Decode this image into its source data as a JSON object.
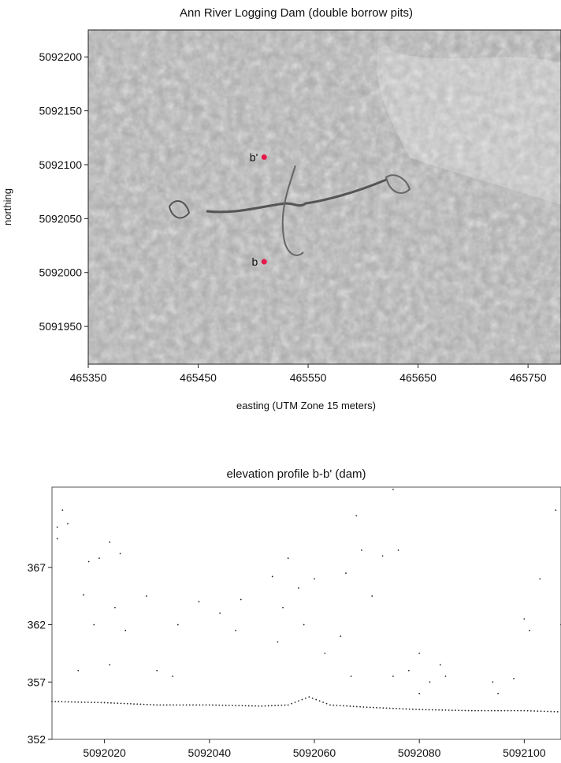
{
  "chart_data": [
    {
      "type": "map",
      "title": "Ann River Logging Dam (double borrow pits)",
      "xlabel": "easting (UTM Zone 15 meters)",
      "ylabel": "northing",
      "xlim": [
        465350,
        465780
      ],
      "ylim": [
        5091915,
        5092225
      ],
      "xticks": [
        "465350",
        "465450",
        "465550",
        "465650",
        "465750"
      ],
      "yticks": [
        "5092200",
        "5092150",
        "5092100",
        "5092050",
        "5092000",
        "5091950"
      ],
      "points": [
        {
          "label": "b'",
          "x": 465510,
          "y": 5092107
        },
        {
          "label": "b",
          "x": 465510,
          "y": 5092010
        }
      ],
      "marker_color": "#e6194b"
    },
    {
      "type": "scatter",
      "title": "elevation profile b-b' (dam)",
      "xlabel": "",
      "ylabel": "",
      "xlim": [
        5092010,
        5092107
      ],
      "ylim": [
        352,
        374
      ],
      "xticks": [
        "5092020",
        "5092040",
        "5092060",
        "5092080",
        "5092100"
      ],
      "yticks": [
        "367",
        "362",
        "357",
        "352"
      ],
      "ground_profile": [
        {
          "x": 5092010,
          "y": 355.3
        },
        {
          "x": 5092020,
          "y": 355.2
        },
        {
          "x": 5092030,
          "y": 355.0
        },
        {
          "x": 5092040,
          "y": 355.0
        },
        {
          "x": 5092050,
          "y": 354.9
        },
        {
          "x": 5092055,
          "y": 355.0
        },
        {
          "x": 5092059,
          "y": 355.7
        },
        {
          "x": 5092063,
          "y": 355.0
        },
        {
          "x": 5092070,
          "y": 354.8
        },
        {
          "x": 5092080,
          "y": 354.6
        },
        {
          "x": 5092090,
          "y": 354.5
        },
        {
          "x": 5092100,
          "y": 354.5
        },
        {
          "x": 5092107,
          "y": 354.4
        }
      ],
      "canopy_points": [
        {
          "x": 5092011,
          "y": 370.5
        },
        {
          "x": 5092012,
          "y": 372.0
        },
        {
          "x": 5092013,
          "y": 370.8
        },
        {
          "x": 5092011,
          "y": 369.5
        },
        {
          "x": 5092017,
          "y": 367.5
        },
        {
          "x": 5092019,
          "y": 367.8
        },
        {
          "x": 5092021,
          "y": 369.2
        },
        {
          "x": 5092023,
          "y": 368.2
        },
        {
          "x": 5092016,
          "y": 364.6
        },
        {
          "x": 5092018,
          "y": 362.0
        },
        {
          "x": 5092022,
          "y": 363.5
        },
        {
          "x": 5092024,
          "y": 361.5
        },
        {
          "x": 5092015,
          "y": 358.0
        },
        {
          "x": 5092021,
          "y": 358.5
        },
        {
          "x": 5092028,
          "y": 364.5
        },
        {
          "x": 5092034,
          "y": 362.0
        },
        {
          "x": 5092038,
          "y": 364.0
        },
        {
          "x": 5092042,
          "y": 363.0
        },
        {
          "x": 5092045,
          "y": 361.5
        },
        {
          "x": 5092046,
          "y": 364.2
        },
        {
          "x": 5092030,
          "y": 358.0
        },
        {
          "x": 5092033,
          "y": 357.5
        },
        {
          "x": 5092052,
          "y": 366.2
        },
        {
          "x": 5092054,
          "y": 363.5
        },
        {
          "x": 5092055,
          "y": 367.8
        },
        {
          "x": 5092057,
          "y": 365.2
        },
        {
          "x": 5092060,
          "y": 366.0
        },
        {
          "x": 5092053,
          "y": 360.5
        },
        {
          "x": 5092058,
          "y": 362.0
        },
        {
          "x": 5092062,
          "y": 359.5
        },
        {
          "x": 5092066,
          "y": 366.5
        },
        {
          "x": 5092068,
          "y": 371.5
        },
        {
          "x": 5092069,
          "y": 368.5
        },
        {
          "x": 5092071,
          "y": 364.5
        },
        {
          "x": 5092065,
          "y": 361.0
        },
        {
          "x": 5092067,
          "y": 357.5
        },
        {
          "x": 5092073,
          "y": 368.0
        },
        {
          "x": 5092075,
          "y": 373.8
        },
        {
          "x": 5092076,
          "y": 368.5
        },
        {
          "x": 5092075,
          "y": 357.5
        },
        {
          "x": 5092078,
          "y": 358.0
        },
        {
          "x": 5092080,
          "y": 359.5
        },
        {
          "x": 5092082,
          "y": 357.0
        },
        {
          "x": 5092084,
          "y": 358.5
        },
        {
          "x": 5092085,
          "y": 357.5
        },
        {
          "x": 5092080,
          "y": 356.0
        },
        {
          "x": 5092094,
          "y": 357.0
        },
        {
          "x": 5092095,
          "y": 356.0
        },
        {
          "x": 5092098,
          "y": 357.3
        },
        {
          "x": 5092100,
          "y": 362.5
        },
        {
          "x": 5092101,
          "y": 361.5
        },
        {
          "x": 5092103,
          "y": 366.0
        },
        {
          "x": 5092106,
          "y": 372.0
        },
        {
          "x": 5092107,
          "y": 362.0
        }
      ]
    }
  ]
}
